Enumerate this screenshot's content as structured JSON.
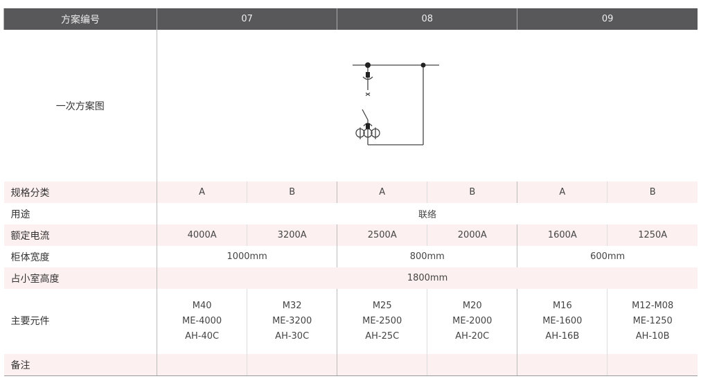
{
  "header": {
    "label": "方案编号",
    "schemes": [
      "07",
      "08",
      "09"
    ]
  },
  "diagram_row": {
    "label": "一次方案图"
  },
  "spec_row": {
    "label": "规格分类",
    "values": [
      "A",
      "B",
      "A",
      "B",
      "A",
      "B"
    ]
  },
  "usage_row": {
    "label": "用途",
    "value": "联络"
  },
  "current_row": {
    "label": "额定电流",
    "values": [
      "4000A",
      "3200A",
      "2500A",
      "2000A",
      "1600A",
      "1250A"
    ]
  },
  "width_row": {
    "label": "柜体宽度",
    "values": [
      "1000mm",
      "800mm",
      "600mm"
    ]
  },
  "height_row": {
    "label": "占小室高度",
    "value": "1800mm"
  },
  "components_row": {
    "label": "主要元件",
    "values": [
      [
        "M40",
        "ME-4000",
        "AH-40C"
      ],
      [
        "M32",
        "ME-3200",
        "AH-30C"
      ],
      [
        "M25",
        "ME-2500",
        "AH-25C"
      ],
      [
        "M20",
        "ME-2000",
        "AH-20C"
      ],
      [
        "M16",
        "ME-1600",
        "AH-16B"
      ],
      [
        "M12-M08",
        "ME-1250",
        "AH-10B"
      ]
    ]
  },
  "remarks_row": {
    "label": "备注"
  },
  "colors": {
    "header_bg": "#58585a",
    "row_tint": "#fdf0f0"
  }
}
